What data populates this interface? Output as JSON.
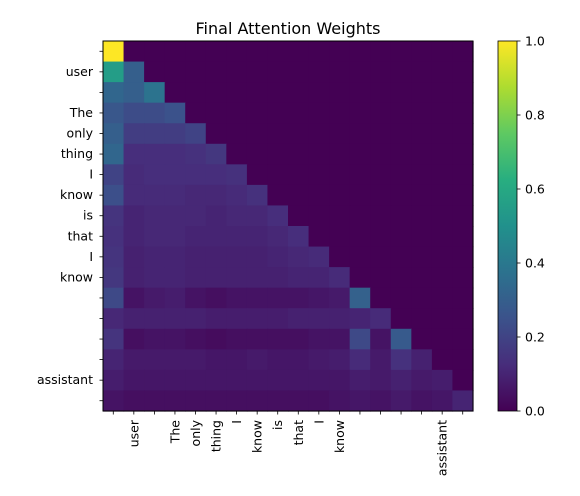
{
  "chart_data": {
    "type": "heatmap",
    "title": "Final Attention Weights",
    "tokens": [
      "",
      "user",
      "",
      "The",
      "only",
      "thing",
      "I",
      "know",
      "is",
      "that",
      "I",
      "know",
      "",
      "",
      "",
      "",
      "assistant",
      ""
    ],
    "matrix": [
      [
        1.0
      ],
      [
        0.55,
        0.3
      ],
      [
        0.33,
        0.3,
        0.38
      ],
      [
        0.27,
        0.23,
        0.23,
        0.25
      ],
      [
        0.3,
        0.18,
        0.18,
        0.18,
        0.2
      ],
      [
        0.33,
        0.13,
        0.13,
        0.13,
        0.14,
        0.16
      ],
      [
        0.2,
        0.12,
        0.13,
        0.13,
        0.13,
        0.13,
        0.14
      ],
      [
        0.24,
        0.12,
        0.12,
        0.12,
        0.11,
        0.11,
        0.12,
        0.14
      ],
      [
        0.15,
        0.1,
        0.11,
        0.11,
        0.11,
        0.1,
        0.11,
        0.11,
        0.13
      ],
      [
        0.14,
        0.1,
        0.11,
        0.11,
        0.1,
        0.1,
        0.1,
        0.1,
        0.11,
        0.13
      ],
      [
        0.15,
        0.09,
        0.1,
        0.1,
        0.09,
        0.09,
        0.09,
        0.09,
        0.1,
        0.11,
        0.12
      ],
      [
        0.16,
        0.09,
        0.1,
        0.1,
        0.09,
        0.09,
        0.09,
        0.09,
        0.09,
        0.1,
        0.1,
        0.12
      ],
      [
        0.22,
        0.05,
        0.07,
        0.08,
        0.05,
        0.04,
        0.05,
        0.05,
        0.05,
        0.05,
        0.06,
        0.07,
        0.31
      ],
      [
        0.11,
        0.09,
        0.09,
        0.09,
        0.09,
        0.08,
        0.08,
        0.08,
        0.08,
        0.09,
        0.09,
        0.09,
        0.1,
        0.12
      ],
      [
        0.15,
        0.04,
        0.05,
        0.05,
        0.04,
        0.03,
        0.04,
        0.04,
        0.04,
        0.04,
        0.05,
        0.05,
        0.22,
        0.05,
        0.28
      ],
      [
        0.1,
        0.07,
        0.07,
        0.07,
        0.07,
        0.06,
        0.06,
        0.07,
        0.06,
        0.06,
        0.07,
        0.08,
        0.12,
        0.07,
        0.14,
        0.09
      ],
      [
        0.08,
        0.06,
        0.06,
        0.06,
        0.06,
        0.06,
        0.06,
        0.06,
        0.06,
        0.06,
        0.06,
        0.06,
        0.08,
        0.07,
        0.09,
        0.07,
        0.08
      ],
      [
        0.05,
        0.04,
        0.04,
        0.04,
        0.04,
        0.04,
        0.04,
        0.04,
        0.04,
        0.04,
        0.04,
        0.05,
        0.06,
        0.05,
        0.07,
        0.05,
        0.06,
        0.1
      ]
    ],
    "vmin": 0,
    "vmax": 1,
    "colorbar_ticks": [
      "0.0",
      "0.2",
      "0.4",
      "0.6",
      "0.8",
      "1.0"
    ],
    "colormap": "viridis"
  }
}
